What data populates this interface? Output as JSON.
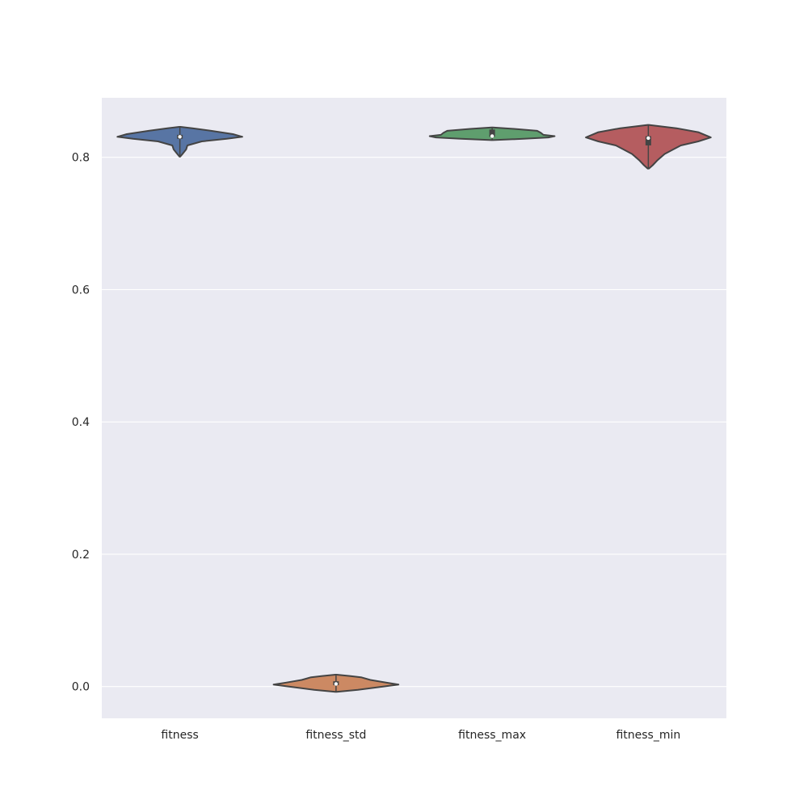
{
  "chart_data": {
    "type": "violin",
    "ylim": [
      -0.048,
      0.89
    ],
    "yticks": [
      0.0,
      0.2,
      0.4,
      0.6,
      0.8
    ],
    "ytick_labels": [
      "0.0",
      "0.2",
      "0.4",
      "0.6",
      "0.8"
    ],
    "grid": true,
    "background_color": "#eaeaf2",
    "categories": [
      "fitness",
      "fitness_std",
      "fitness_max",
      "fitness_min"
    ],
    "series": [
      {
        "category": "fitness",
        "color": "#5875a4",
        "min": 0.801,
        "max": 0.846,
        "q1": 0.828,
        "median": 0.831,
        "q3": 0.834,
        "density": [
          [
            0.801,
            0.005
          ],
          [
            0.806,
            0.05
          ],
          [
            0.812,
            0.1
          ],
          [
            0.818,
            0.12
          ],
          [
            0.824,
            0.35
          ],
          [
            0.828,
            0.75
          ],
          [
            0.831,
            1.0
          ],
          [
            0.835,
            0.85
          ],
          [
            0.84,
            0.5
          ],
          [
            0.844,
            0.2
          ],
          [
            0.846,
            0.01
          ]
        ]
      },
      {
        "category": "fitness_std",
        "color": "#cc8963",
        "min": -0.008,
        "max": 0.018,
        "q1": 0.002,
        "median": 0.004,
        "q3": 0.008,
        "density": [
          [
            -0.008,
            0.01
          ],
          [
            -0.005,
            0.35
          ],
          [
            0.0,
            0.75
          ],
          [
            0.003,
            1.0
          ],
          [
            0.006,
            0.8
          ],
          [
            0.01,
            0.55
          ],
          [
            0.014,
            0.4
          ],
          [
            0.016,
            0.22
          ],
          [
            0.018,
            0.01
          ]
        ]
      },
      {
        "category": "fitness_max",
        "color": "#5f9e6e",
        "min": 0.826,
        "max": 0.845,
        "q1": 0.831,
        "median": 0.832,
        "q3": 0.842,
        "density": [
          [
            0.826,
            0.01
          ],
          [
            0.828,
            0.5
          ],
          [
            0.83,
            0.9
          ],
          [
            0.832,
            1.0
          ],
          [
            0.834,
            0.82
          ],
          [
            0.837,
            0.78
          ],
          [
            0.84,
            0.72
          ],
          [
            0.843,
            0.35
          ],
          [
            0.845,
            0.01
          ]
        ]
      },
      {
        "category": "fitness_min",
        "color": "#b55d60",
        "min": 0.783,
        "max": 0.849,
        "q1": 0.818,
        "median": 0.829,
        "q3": 0.832,
        "density": [
          [
            0.783,
            0.01
          ],
          [
            0.788,
            0.07
          ],
          [
            0.795,
            0.14
          ],
          [
            0.805,
            0.26
          ],
          [
            0.812,
            0.4
          ],
          [
            0.818,
            0.52
          ],
          [
            0.824,
            0.8
          ],
          [
            0.83,
            1.0
          ],
          [
            0.838,
            0.8
          ],
          [
            0.844,
            0.45
          ],
          [
            0.849,
            0.01
          ]
        ]
      }
    ]
  }
}
